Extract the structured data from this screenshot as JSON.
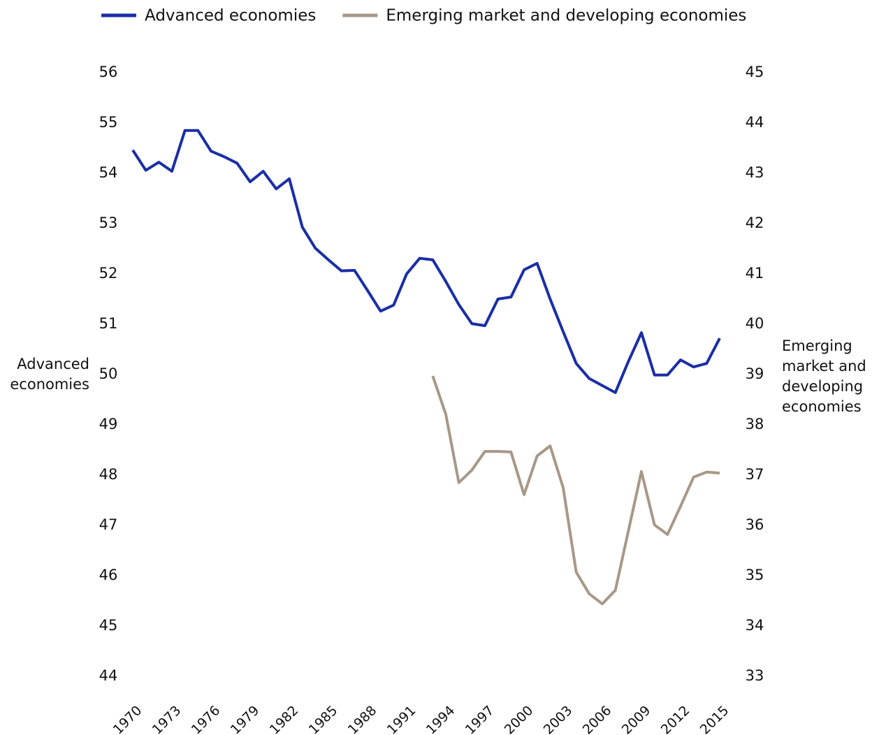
{
  "chart_data": {
    "type": "line",
    "ylabel": [
      "Advanced",
      "economies"
    ],
    "y2label": [
      "Emerging",
      "market and",
      "developing",
      "economies"
    ],
    "x": [
      1970,
      1971,
      1972,
      1973,
      1974,
      1975,
      1976,
      1977,
      1978,
      1979,
      1980,
      1981,
      1982,
      1983,
      1984,
      1985,
      1986,
      1987,
      1988,
      1989,
      1990,
      1991,
      1992,
      1993,
      1994,
      1995,
      1996,
      1997,
      1998,
      1999,
      2000,
      2001,
      2002,
      2003,
      2004,
      2005,
      2006,
      2007,
      2008,
      2009,
      2010,
      2011,
      2012,
      2013,
      2014,
      2015
    ],
    "series": [
      {
        "name": "Advanced economies",
        "color": "#1a2ea6",
        "axis": "y",
        "values": [
          54.46,
          54.06,
          54.22,
          54.04,
          54.85,
          54.85,
          54.44,
          54.33,
          54.2,
          53.83,
          54.04,
          53.69,
          53.89,
          52.93,
          52.51,
          52.28,
          52.06,
          52.07,
          51.67,
          51.26,
          51.38,
          52.0,
          52.31,
          52.28,
          51.85,
          51.39,
          51.01,
          50.97,
          51.5,
          51.54,
          52.08,
          52.21,
          51.5,
          50.85,
          50.22,
          49.92,
          49.78,
          49.64,
          50.26,
          50.83,
          49.99,
          49.99,
          50.29,
          50.15,
          50.22,
          50.72
        ]
      },
      {
        "name": "Emerging market and developing economies",
        "color": "#a89888",
        "axis": "y2",
        "values": [
          null,
          null,
          null,
          null,
          null,
          null,
          null,
          null,
          null,
          null,
          null,
          null,
          null,
          null,
          null,
          null,
          null,
          null,
          null,
          null,
          null,
          null,
          null,
          38.97,
          38.21,
          36.85,
          37.1,
          37.47,
          37.47,
          37.46,
          36.61,
          37.38,
          37.58,
          36.75,
          35.07,
          34.64,
          34.44,
          34.71,
          35.89,
          37.07,
          36.01,
          35.82,
          36.38,
          36.96,
          37.06,
          37.04
        ]
      }
    ],
    "xlim": [
      1970,
      2015
    ],
    "xticks": [
      1970,
      1973,
      1976,
      1979,
      1982,
      1985,
      1988,
      1991,
      1994,
      1997,
      2000,
      2003,
      2006,
      2009,
      2012,
      2015
    ],
    "ylim": [
      44,
      56
    ],
    "yticks": [
      44,
      45,
      46,
      47,
      48,
      49,
      50,
      51,
      52,
      53,
      54,
      55,
      56
    ],
    "y2lim": [
      33,
      45
    ],
    "y2ticks": [
      33,
      34,
      35,
      36,
      37,
      38,
      39,
      40,
      41,
      42,
      43,
      44,
      45
    ]
  }
}
